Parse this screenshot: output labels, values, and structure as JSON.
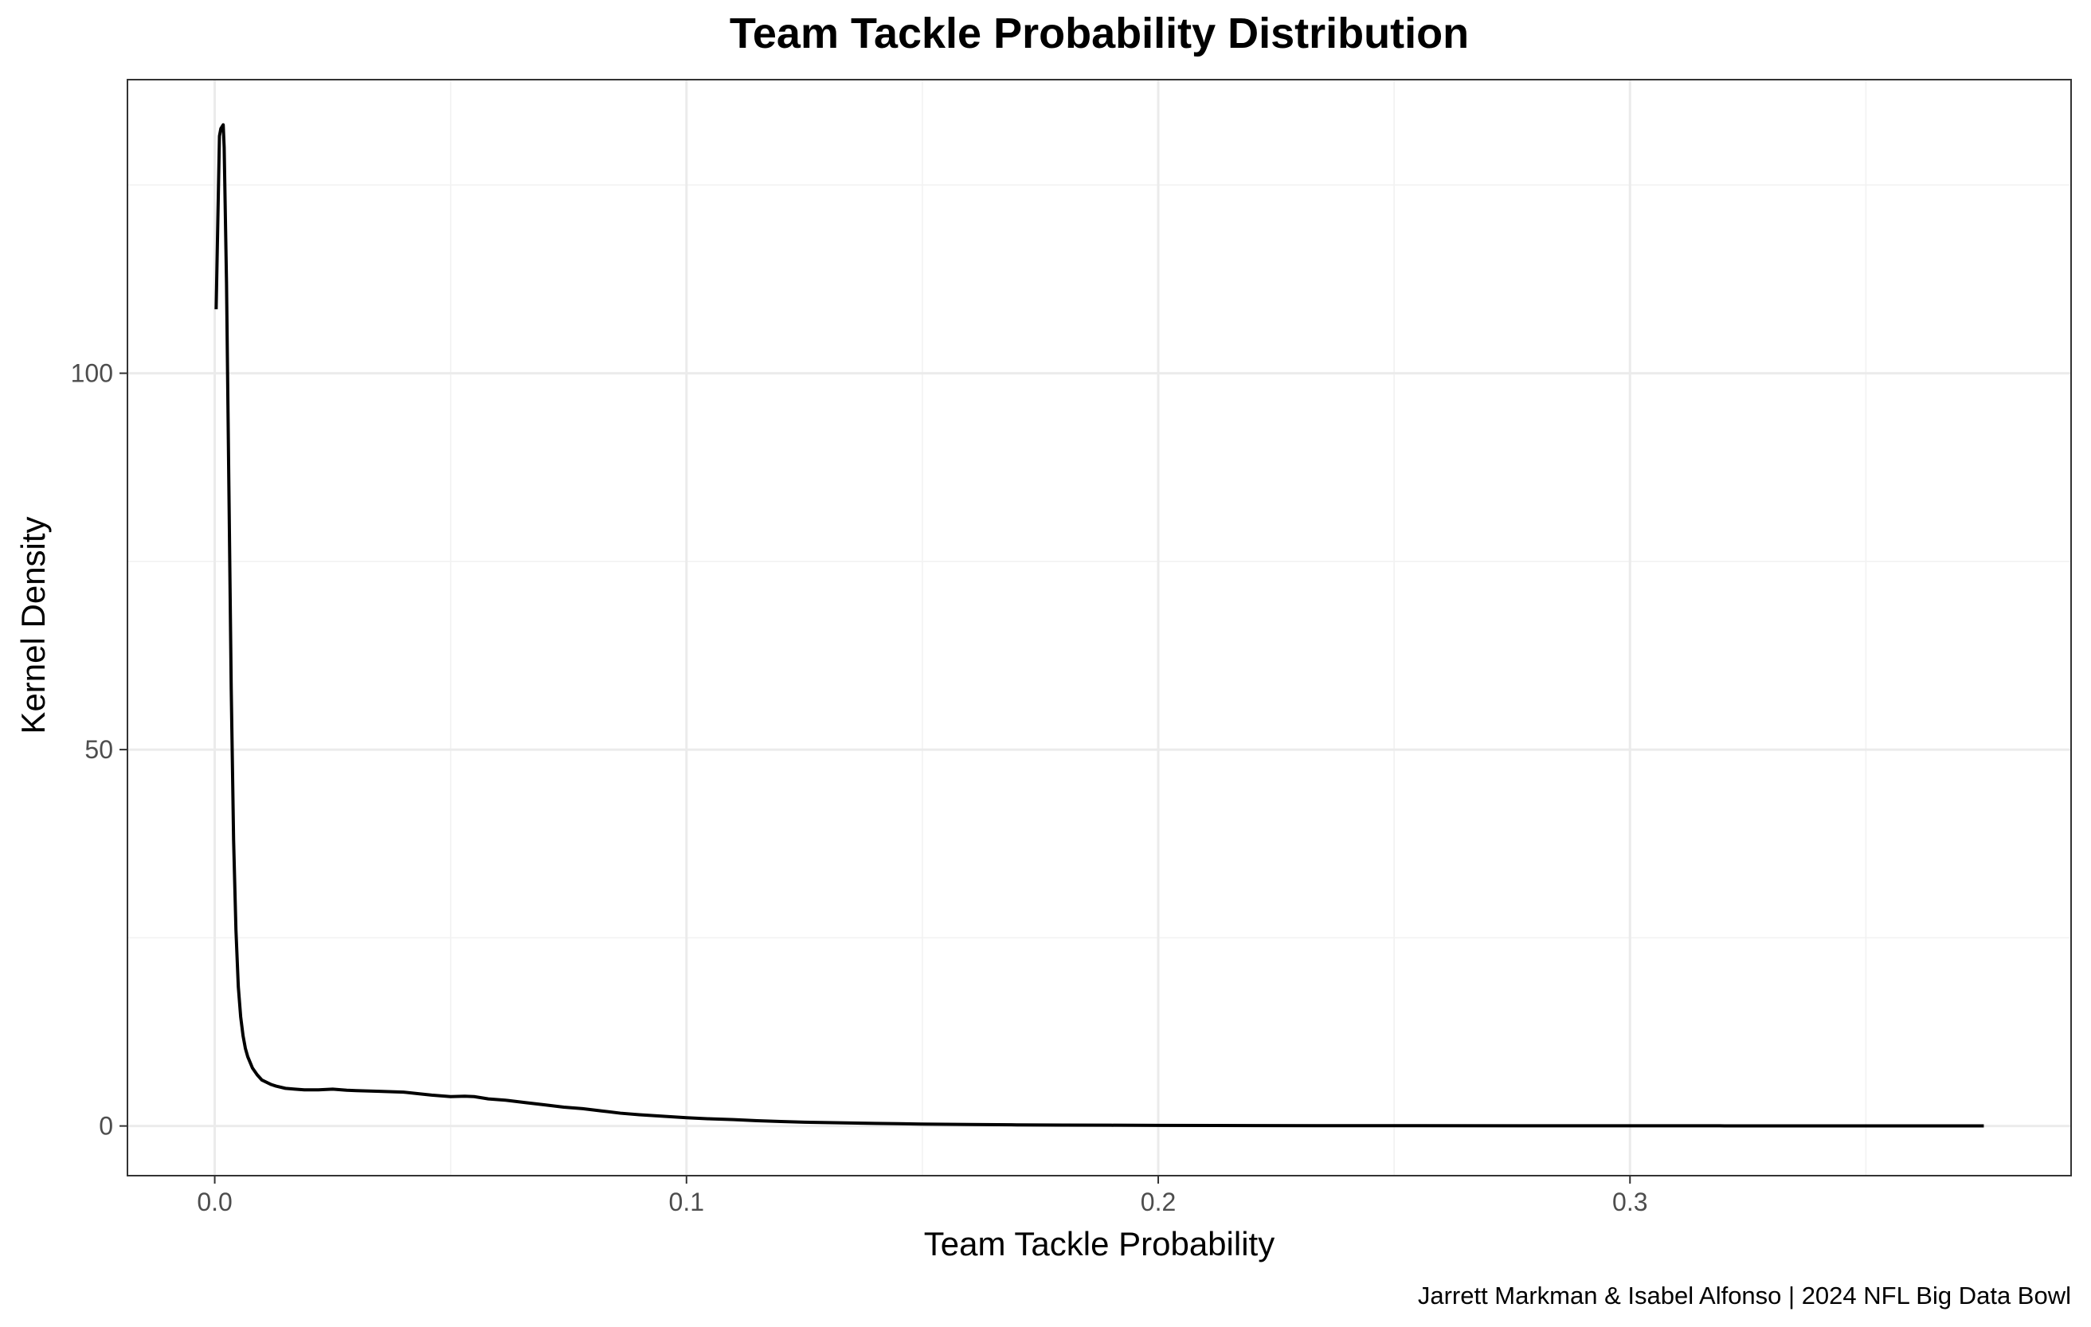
{
  "chart_data": {
    "type": "line",
    "title": "Team Tackle Probability Distribution",
    "xlabel": "Team Tackle Probability",
    "ylabel": "Kernel Density",
    "caption": "Jarrett Markman & Isabel Alfonso | 2024 NFL Big Data Bowl",
    "xlim": [
      -0.0185,
      0.3935
    ],
    "ylim": [
      -6.6,
      139.0
    ],
    "x_ticks": [
      0.0,
      0.1,
      0.2,
      0.3
    ],
    "x_tick_labels": [
      "0.0",
      "0.1",
      "0.2",
      "0.3"
    ],
    "x_minor_ticks": [
      0.05,
      0.15,
      0.25,
      0.35
    ],
    "y_ticks": [
      0,
      50,
      100
    ],
    "y_tick_labels": [
      "0",
      "50",
      "100"
    ],
    "y_minor_ticks": [
      25,
      75,
      125
    ],
    "grid": true,
    "series": [
      {
        "name": "density",
        "x": [
          0.0003,
          0.001,
          0.0013,
          0.0018,
          0.002,
          0.0025,
          0.003,
          0.0035,
          0.004,
          0.0045,
          0.005,
          0.0055,
          0.006,
          0.0065,
          0.007,
          0.008,
          0.009,
          0.01,
          0.011,
          0.012,
          0.013,
          0.015,
          0.017,
          0.019,
          0.022,
          0.025,
          0.028,
          0.03,
          0.035,
          0.04,
          0.043,
          0.046,
          0.05,
          0.053,
          0.055,
          0.058,
          0.062,
          0.066,
          0.07,
          0.074,
          0.078,
          0.082,
          0.086,
          0.09,
          0.095,
          0.1,
          0.105,
          0.11,
          0.115,
          0.12,
          0.125,
          0.13,
          0.135,
          0.14,
          0.145,
          0.15,
          0.16,
          0.17,
          0.18,
          0.19,
          0.2,
          0.22,
          0.25,
          0.28,
          0.3,
          0.32,
          0.34,
          0.36,
          0.375
        ],
        "y": [
          108.5,
          131.5,
          132.5,
          133.0,
          130.0,
          112.0,
          85.0,
          58.0,
          38.0,
          26.0,
          18.5,
          14.5,
          12.0,
          10.3,
          9.2,
          7.7,
          6.8,
          6.1,
          5.8,
          5.5,
          5.3,
          5.0,
          4.9,
          4.8,
          4.8,
          4.9,
          4.75,
          4.7,
          4.6,
          4.5,
          4.3,
          4.1,
          3.9,
          3.95,
          3.9,
          3.6,
          3.4,
          3.1,
          2.8,
          2.5,
          2.3,
          2.0,
          1.7,
          1.5,
          1.3,
          1.1,
          0.95,
          0.85,
          0.7,
          0.6,
          0.5,
          0.45,
          0.4,
          0.35,
          0.3,
          0.25,
          0.2,
          0.15,
          0.12,
          0.1,
          0.08,
          0.05,
          0.04,
          0.03,
          0.03,
          0.02,
          0.02,
          0.02,
          0.02
        ]
      }
    ]
  }
}
